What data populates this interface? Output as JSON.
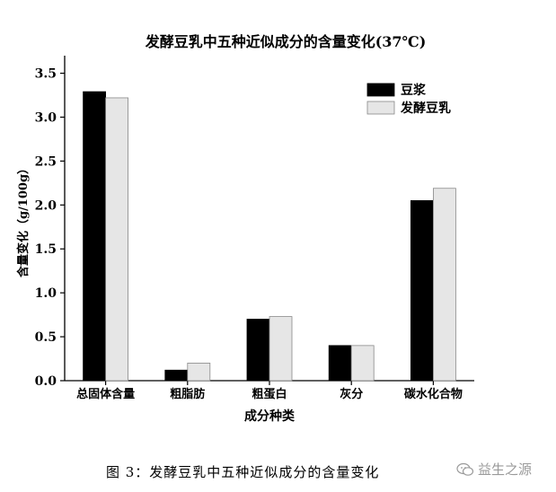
{
  "chart_data": {
    "type": "bar",
    "title": "发酵豆乳中五种近似成分的含量变化(37℃)",
    "xlabel": "成分种类",
    "ylabel": "含量变化（g/100g）",
    "categories": [
      "总固体含量",
      "粗脂肪",
      "粗蛋白",
      "灰分",
      "碳水化合物"
    ],
    "series": [
      {
        "name": "豆浆",
        "color": "#000000",
        "values": [
          3.29,
          0.12,
          0.7,
          0.4,
          2.05
        ]
      },
      {
        "name": "发酵豆乳",
        "color": "#e6e6e6",
        "values": [
          3.22,
          0.2,
          0.73,
          0.4,
          2.19
        ]
      }
    ],
    "ylim": [
      0,
      3.7
    ],
    "yticks": [
      "0.0",
      "0.5",
      "1.0",
      "1.5",
      "2.0",
      "2.5",
      "3.0",
      "3.5"
    ],
    "legend": "top-right",
    "grid": false
  },
  "caption": "图 3：发酵豆乳中五种近似成分的含量变化",
  "watermark": "益生之源",
  "watermark_icon": "wechat-icon"
}
